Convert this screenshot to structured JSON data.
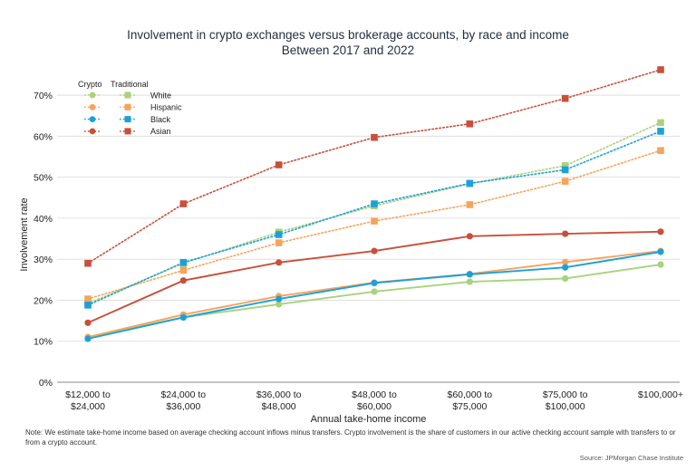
{
  "chart_data": {
    "type": "line",
    "title": "Involvement in crypto exchanges versus brokerage accounts, by race and income",
    "subtitle": "Between 2017 and 2022",
    "xlabel": "Annual take-home income",
    "ylabel": "Involvement rate",
    "ylim": [
      0,
      70
    ],
    "yticks": [
      "0%",
      "10%",
      "20%",
      "30%",
      "40%",
      "50%",
      "60%",
      "70%"
    ],
    "grid": true,
    "legend": {
      "position": "top-left",
      "headers": [
        "Crypto",
        "Traditional"
      ],
      "entries": [
        "White",
        "Hispanic",
        "Black",
        "Asian"
      ]
    },
    "categories": [
      [
        "$12,000 to",
        "$24,000"
      ],
      [
        "$24,000 to",
        "$36,000"
      ],
      [
        "$36,000 to",
        "$48,000"
      ],
      [
        "$48,000 to",
        "$60,000"
      ],
      [
        "$60,000 to",
        "$75,000"
      ],
      [
        "$75,000 to",
        "$100,000"
      ],
      [
        "$100,000+"
      ]
    ],
    "series": [
      {
        "group": "Crypto",
        "race": "White",
        "color": "#a8d27c",
        "style": "solid",
        "marker": "circle",
        "values": [
          11.0,
          15.8,
          19.0,
          22.1,
          24.5,
          25.3,
          28.7
        ]
      },
      {
        "group": "Crypto",
        "race": "Hispanic",
        "color": "#f5a45c",
        "style": "solid",
        "marker": "circle",
        "values": [
          11.0,
          16.5,
          21.0,
          24.3,
          26.4,
          29.3,
          32.0
        ]
      },
      {
        "group": "Crypto",
        "race": "Black",
        "color": "#1da0d8",
        "style": "solid",
        "marker": "circle",
        "values": [
          10.6,
          15.8,
          20.3,
          24.2,
          26.3,
          28.0,
          31.8
        ]
      },
      {
        "group": "Crypto",
        "race": "Asian",
        "color": "#c8503a",
        "style": "solid",
        "marker": "circle",
        "values": [
          14.5,
          24.8,
          29.2,
          32.0,
          35.6,
          36.2,
          36.7
        ]
      },
      {
        "group": "Traditional",
        "race": "White",
        "color": "#a8d27c",
        "style": "dotted",
        "marker": "square",
        "values": [
          19.2,
          29.0,
          36.6,
          43.0,
          48.4,
          52.8,
          63.3
        ]
      },
      {
        "group": "Traditional",
        "race": "Hispanic",
        "color": "#f5a45c",
        "style": "dotted",
        "marker": "square",
        "values": [
          20.3,
          27.3,
          34.0,
          39.3,
          43.3,
          49.0,
          56.5
        ]
      },
      {
        "group": "Traditional",
        "race": "Black",
        "color": "#1da0d8",
        "style": "dotted",
        "marker": "square",
        "values": [
          18.8,
          29.2,
          36.0,
          43.5,
          48.5,
          51.8,
          61.2
        ]
      },
      {
        "group": "Traditional",
        "race": "Asian",
        "color": "#c8503a",
        "style": "dotted",
        "marker": "square",
        "values": [
          29.0,
          43.5,
          53.0,
          59.7,
          63.0,
          69.2,
          76.2
        ]
      }
    ]
  },
  "note": "Note: We estimate take-home income based on average checking account inflows minus transfers. Crypto involvement is the share of customers in our active checking account sample with transfers to or from a crypto account.",
  "source": "Source: JPMorgan Chase Institute"
}
